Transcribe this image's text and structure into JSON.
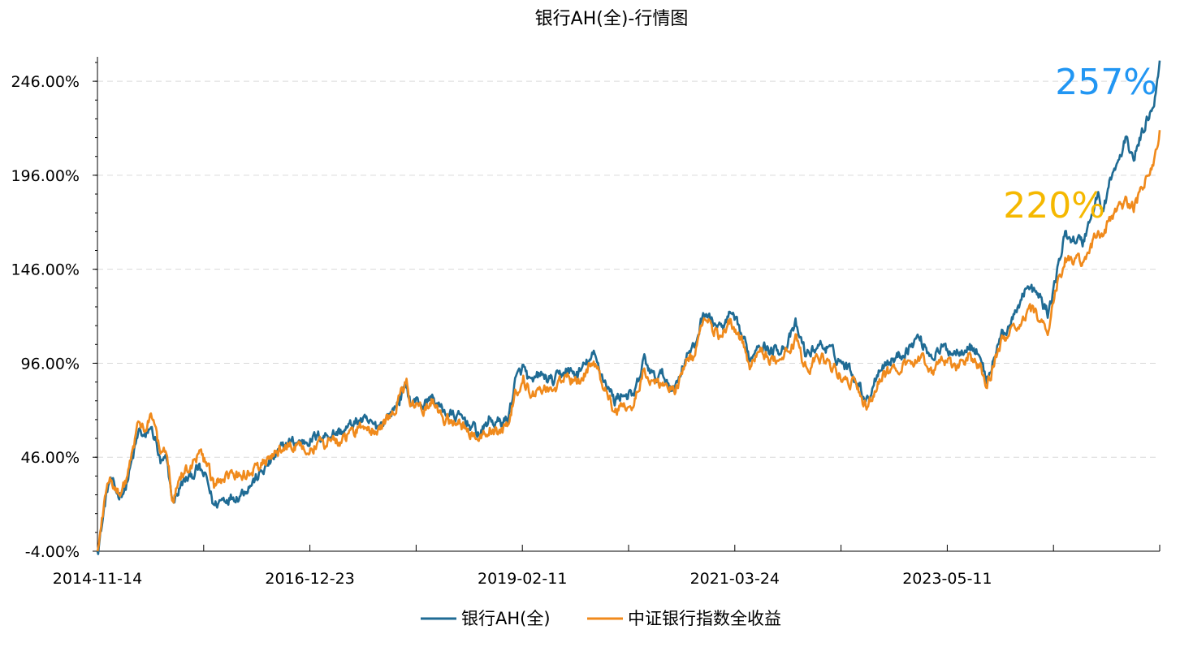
{
  "chart_data": {
    "type": "line",
    "title": "银行AH(全)-行情图",
    "xlabel": "",
    "ylabel": "",
    "x_tick_labels": [
      "2014-11-14",
      "2016-12-23",
      "2019-02-11",
      "2021-03-24",
      "2023-05-11"
    ],
    "y_tick_labels": [
      "-4.00%",
      "46.00%",
      "96.00%",
      "146.00%",
      "196.00%",
      "246.00%"
    ],
    "y_ticks": [
      -4,
      46,
      96,
      146,
      196,
      246
    ],
    "ylim": [
      -4,
      259
    ],
    "xlim": [
      "2014-11-14",
      "2025-11-07"
    ],
    "grid": "horizontal dashed",
    "legend_position": "bottom",
    "series": [
      {
        "name": "银行AH(全)",
        "color": "#1f6b94",
        "points": [
          [
            "2014-11-14",
            -4
          ],
          [
            "2014-12-01",
            10
          ],
          [
            "2014-12-15",
            24
          ],
          [
            "2014-12-31",
            34
          ],
          [
            "2015-01-15",
            30
          ],
          [
            "2015-02-01",
            26
          ],
          [
            "2015-03-01",
            30
          ],
          [
            "2015-04-01",
            48
          ],
          [
            "2015-04-20",
            60
          ],
          [
            "2015-05-15",
            56
          ],
          [
            "2015-06-01",
            62
          ],
          [
            "2015-06-20",
            56
          ],
          [
            "2015-07-10",
            42
          ],
          [
            "2015-08-01",
            44
          ],
          [
            "2015-08-26",
            22
          ],
          [
            "2015-09-30",
            32
          ],
          [
            "2015-11-01",
            36
          ],
          [
            "2015-12-01",
            40
          ],
          [
            "2016-01-01",
            34
          ],
          [
            "2016-01-28",
            20
          ],
          [
            "2016-03-01",
            24
          ],
          [
            "2016-05-01",
            26
          ],
          [
            "2016-07-01",
            34
          ],
          [
            "2016-09-01",
            44
          ],
          [
            "2016-11-01",
            54
          ],
          [
            "2016-12-23",
            54
          ],
          [
            "2017-02-01",
            56
          ],
          [
            "2017-04-01",
            58
          ],
          [
            "2017-06-01",
            60
          ],
          [
            "2017-08-01",
            66
          ],
          [
            "2017-10-01",
            62
          ],
          [
            "2017-12-01",
            70
          ],
          [
            "2018-01-24",
            84
          ],
          [
            "2018-02-10",
            74
          ],
          [
            "2018-03-01",
            76
          ],
          [
            "2018-04-01",
            74
          ],
          [
            "2018-05-01",
            78
          ],
          [
            "2018-06-01",
            72
          ],
          [
            "2018-07-15",
            68
          ],
          [
            "2018-09-01",
            66
          ],
          [
            "2018-10-30",
            58
          ],
          [
            "2018-12-01",
            66
          ],
          [
            "2019-01-01",
            64
          ],
          [
            "2019-02-11",
            66
          ],
          [
            "2019-03-10",
            86
          ],
          [
            "2019-04-10",
            94
          ],
          [
            "2019-05-10",
            84
          ],
          [
            "2019-06-10",
            90
          ],
          [
            "2019-08-01",
            86
          ],
          [
            "2019-09-15",
            92
          ],
          [
            "2019-11-01",
            90
          ],
          [
            "2020-01-01",
            100
          ],
          [
            "2020-02-01",
            90
          ],
          [
            "2020-03-20",
            76
          ],
          [
            "2020-04-15",
            80
          ],
          [
            "2020-06-01",
            78
          ],
          [
            "2020-07-10",
            98
          ],
          [
            "2020-08-15",
            88
          ],
          [
            "2020-09-15",
            90
          ],
          [
            "2020-10-30",
            82
          ],
          [
            "2020-12-15",
            100
          ],
          [
            "2021-01-15",
            104
          ],
          [
            "2021-02-20",
            124
          ],
          [
            "2021-03-24",
            118
          ],
          [
            "2021-05-01",
            114
          ],
          [
            "2021-06-01",
            122
          ],
          [
            "2021-07-15",
            110
          ],
          [
            "2021-08-15",
            98
          ],
          [
            "2021-09-15",
            108
          ],
          [
            "2021-11-01",
            102
          ],
          [
            "2021-12-31",
            106
          ],
          [
            "2022-02-01",
            116
          ],
          [
            "2022-03-15",
            100
          ],
          [
            "2022-04-30",
            106
          ],
          [
            "2022-06-01",
            104
          ],
          [
            "2022-07-15",
            98
          ],
          [
            "2022-09-01",
            92
          ],
          [
            "2022-10-30",
            76
          ],
          [
            "2022-12-15",
            94
          ],
          [
            "2023-02-01",
            98
          ],
          [
            "2023-03-20",
            102
          ],
          [
            "2023-05-11",
            110
          ],
          [
            "2023-06-30",
            100
          ],
          [
            "2023-08-15",
            104
          ],
          [
            "2023-09-30",
            102
          ],
          [
            "2023-11-15",
            106
          ],
          [
            "2023-12-31",
            100
          ],
          [
            "2024-01-22",
            86
          ],
          [
            "2024-02-15",
            96
          ],
          [
            "2024-03-15",
            110
          ],
          [
            "2024-05-01",
            118
          ],
          [
            "2024-06-15",
            136
          ],
          [
            "2024-07-20",
            134
          ],
          [
            "2024-08-15",
            130
          ],
          [
            "2024-09-13",
            122
          ],
          [
            "2024-10-08",
            140
          ],
          [
            "2024-11-15",
            164
          ],
          [
            "2024-12-31",
            162
          ],
          [
            "2025-01-20",
            160
          ],
          [
            "2025-02-20",
            174
          ],
          [
            "2025-03-20",
            186
          ],
          [
            "2025-04-08",
            176
          ],
          [
            "2025-05-01",
            192
          ],
          [
            "2025-06-01",
            202
          ],
          [
            "2025-07-01",
            214
          ],
          [
            "2025-08-01",
            206
          ],
          [
            "2025-09-01",
            218
          ],
          [
            "2025-10-01",
            230
          ],
          [
            "2025-10-20",
            238
          ],
          [
            "2025-11-07",
            257
          ]
        ]
      },
      {
        "name": "中证银行指数全收益",
        "color": "#f08a1c",
        "points": [
          [
            "2014-11-14",
            -4
          ],
          [
            "2014-12-01",
            12
          ],
          [
            "2014-12-15",
            26
          ],
          [
            "2014-12-31",
            36
          ],
          [
            "2015-01-15",
            32
          ],
          [
            "2015-02-01",
            28
          ],
          [
            "2015-03-01",
            32
          ],
          [
            "2015-04-01",
            52
          ],
          [
            "2015-04-20",
            64
          ],
          [
            "2015-05-15",
            60
          ],
          [
            "2015-06-01",
            70
          ],
          [
            "2015-06-20",
            62
          ],
          [
            "2015-07-10",
            48
          ],
          [
            "2015-08-01",
            48
          ],
          [
            "2015-08-26",
            24
          ],
          [
            "2015-09-30",
            38
          ],
          [
            "2015-11-01",
            42
          ],
          [
            "2015-12-01",
            48
          ],
          [
            "2016-01-01",
            42
          ],
          [
            "2016-01-28",
            30
          ],
          [
            "2016-03-01",
            34
          ],
          [
            "2016-05-01",
            36
          ],
          [
            "2016-07-01",
            40
          ],
          [
            "2016-09-01",
            46
          ],
          [
            "2016-11-01",
            52
          ],
          [
            "2016-12-23",
            52
          ],
          [
            "2017-02-01",
            52
          ],
          [
            "2017-04-01",
            54
          ],
          [
            "2017-06-01",
            56
          ],
          [
            "2017-08-01",
            62
          ],
          [
            "2017-10-01",
            60
          ],
          [
            "2017-12-01",
            70
          ],
          [
            "2018-01-24",
            86
          ],
          [
            "2018-02-10",
            74
          ],
          [
            "2018-03-01",
            74
          ],
          [
            "2018-04-01",
            72
          ],
          [
            "2018-05-01",
            76
          ],
          [
            "2018-06-01",
            68
          ],
          [
            "2018-07-15",
            64
          ],
          [
            "2018-09-01",
            62
          ],
          [
            "2018-10-30",
            56
          ],
          [
            "2018-12-01",
            62
          ],
          [
            "2019-01-01",
            60
          ],
          [
            "2019-02-11",
            62
          ],
          [
            "2019-03-10",
            80
          ],
          [
            "2019-04-10",
            88
          ],
          [
            "2019-05-10",
            78
          ],
          [
            "2019-06-10",
            84
          ],
          [
            "2019-08-01",
            82
          ],
          [
            "2019-09-15",
            88
          ],
          [
            "2019-11-01",
            86
          ],
          [
            "2020-01-01",
            96
          ],
          [
            "2020-02-01",
            86
          ],
          [
            "2020-03-20",
            70
          ],
          [
            "2020-04-15",
            74
          ],
          [
            "2020-06-01",
            74
          ],
          [
            "2020-07-10",
            94
          ],
          [
            "2020-08-15",
            84
          ],
          [
            "2020-09-15",
            86
          ],
          [
            "2020-10-30",
            80
          ],
          [
            "2020-12-15",
            96
          ],
          [
            "2021-01-15",
            100
          ],
          [
            "2021-02-20",
            120
          ],
          [
            "2021-03-24",
            114
          ],
          [
            "2021-05-01",
            110
          ],
          [
            "2021-06-01",
            118
          ],
          [
            "2021-07-15",
            106
          ],
          [
            "2021-08-15",
            94
          ],
          [
            "2021-09-15",
            104
          ],
          [
            "2021-11-01",
            98
          ],
          [
            "2021-12-31",
            102
          ],
          [
            "2022-02-01",
            108
          ],
          [
            "2022-03-15",
            92
          ],
          [
            "2022-04-30",
            100
          ],
          [
            "2022-06-01",
            96
          ],
          [
            "2022-07-15",
            90
          ],
          [
            "2022-09-01",
            86
          ],
          [
            "2022-10-30",
            72
          ],
          [
            "2022-12-15",
            88
          ],
          [
            "2023-02-01",
            92
          ],
          [
            "2023-03-20",
            94
          ],
          [
            "2023-05-11",
            100
          ],
          [
            "2023-06-30",
            92
          ],
          [
            "2023-08-15",
            96
          ],
          [
            "2023-09-30",
            94
          ],
          [
            "2023-11-15",
            100
          ],
          [
            "2023-12-31",
            94
          ],
          [
            "2024-01-22",
            84
          ],
          [
            "2024-02-15",
            94
          ],
          [
            "2024-03-15",
            106
          ],
          [
            "2024-05-01",
            114
          ],
          [
            "2024-06-15",
            122
          ],
          [
            "2024-07-20",
            124
          ],
          [
            "2024-08-15",
            120
          ],
          [
            "2024-09-13",
            114
          ],
          [
            "2024-10-08",
            134
          ],
          [
            "2024-11-15",
            152
          ],
          [
            "2024-12-31",
            150
          ],
          [
            "2025-01-20",
            148
          ],
          [
            "2025-02-20",
            158
          ],
          [
            "2025-03-20",
            166
          ],
          [
            "2025-04-08",
            160
          ],
          [
            "2025-05-01",
            172
          ],
          [
            "2025-06-01",
            176
          ],
          [
            "2025-07-01",
            182
          ],
          [
            "2025-08-01",
            178
          ],
          [
            "2025-09-01",
            188
          ],
          [
            "2025-10-01",
            198
          ],
          [
            "2025-10-20",
            204
          ],
          [
            "2025-11-07",
            220
          ]
        ]
      }
    ],
    "annotations": [
      {
        "text": "257%",
        "color": "#2196f3",
        "series": "银行AH(全)",
        "x": "2025-11-07",
        "y": 257
      },
      {
        "text": "220%",
        "color": "#f5b800",
        "series": "中证银行指数全收益",
        "x": "2025-11-07",
        "y": 220
      }
    ]
  }
}
